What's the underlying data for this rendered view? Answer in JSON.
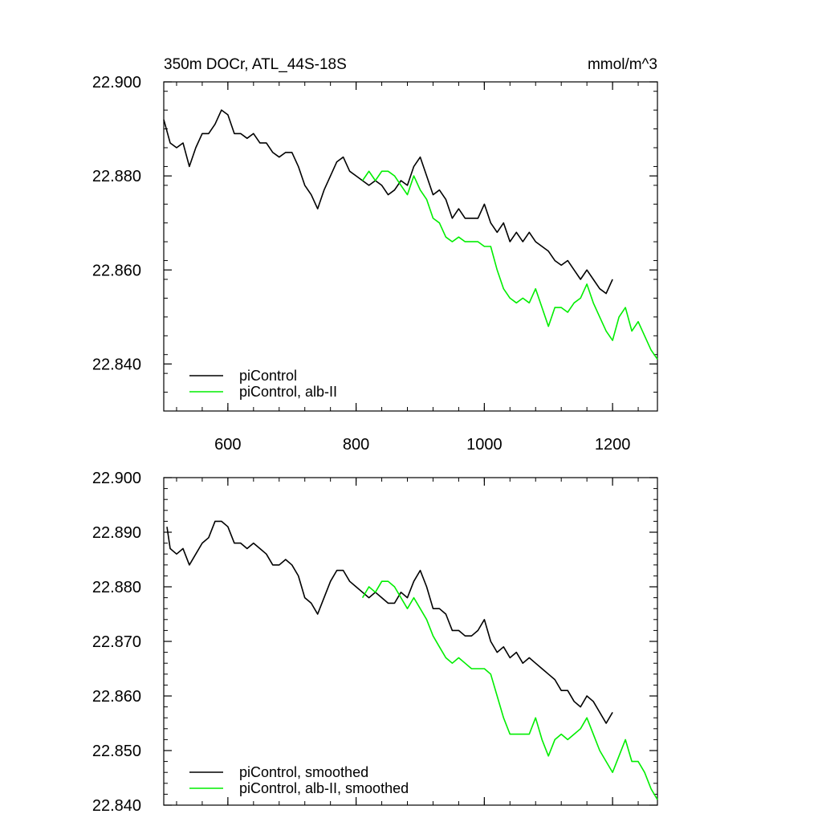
{
  "figure": {
    "title_left": "350m DOCr, ATL_44S-18S",
    "title_right": "mmol/m^3"
  },
  "chart_data": [
    {
      "type": "line",
      "panel": "top",
      "xlim": [
        500,
        1270
      ],
      "ylim": [
        22.83,
        22.9
      ],
      "xticks": [
        600,
        800,
        1000,
        1200
      ],
      "xtick_labels": [
        "600",
        "800",
        "1000",
        "1200"
      ],
      "yticks": [
        22.84,
        22.86,
        22.88,
        22.9
      ],
      "ytick_labels": [
        "22.840",
        "22.860",
        "22.880",
        "22.900"
      ],
      "legend_position": "bottom-left",
      "series": [
        {
          "name": "piControl",
          "color": "#000000",
          "x": [
            500,
            510,
            520,
            530,
            540,
            550,
            560,
            570,
            580,
            590,
            600,
            610,
            620,
            630,
            640,
            650,
            660,
            670,
            680,
            690,
            700,
            710,
            720,
            730,
            740,
            750,
            760,
            770,
            780,
            790,
            800,
            810,
            820,
            830,
            840,
            850,
            860,
            870,
            880,
            890,
            900,
            910,
            920,
            930,
            940,
            950,
            960,
            970,
            980,
            990,
            1000,
            1010,
            1020,
            1030,
            1040,
            1050,
            1060,
            1070,
            1080,
            1090,
            1100,
            1110,
            1120,
            1130,
            1140,
            1150,
            1160,
            1170,
            1180,
            1190,
            1200
          ],
          "y": [
            22.892,
            22.887,
            22.886,
            22.887,
            22.882,
            22.886,
            22.889,
            22.889,
            22.891,
            22.894,
            22.893,
            22.889,
            22.889,
            22.888,
            22.889,
            22.887,
            22.887,
            22.885,
            22.884,
            22.885,
            22.885,
            22.882,
            22.878,
            22.876,
            22.873,
            22.877,
            22.88,
            22.883,
            22.884,
            22.881,
            22.88,
            22.879,
            22.878,
            22.879,
            22.878,
            22.876,
            22.877,
            22.879,
            22.878,
            22.882,
            22.884,
            22.88,
            22.876,
            22.877,
            22.875,
            22.871,
            22.873,
            22.871,
            22.871,
            22.871,
            22.874,
            22.87,
            22.868,
            22.87,
            22.866,
            22.868,
            22.866,
            22.868,
            22.866,
            22.865,
            22.864,
            22.862,
            22.861,
            22.862,
            22.86,
            22.858,
            22.86,
            22.858,
            22.856,
            22.855,
            22.858
          ]
        },
        {
          "name": "piControl, alb-II",
          "color": "#00ee00",
          "x": [
            810,
            820,
            830,
            840,
            850,
            860,
            870,
            880,
            890,
            900,
            910,
            920,
            930,
            940,
            950,
            960,
            970,
            980,
            990,
            1000,
            1010,
            1020,
            1030,
            1040,
            1050,
            1060,
            1070,
            1080,
            1090,
            1100,
            1110,
            1120,
            1130,
            1140,
            1150,
            1160,
            1170,
            1180,
            1190,
            1200,
            1210,
            1220,
            1230,
            1240,
            1250,
            1260,
            1270
          ],
          "y": [
            22.879,
            22.881,
            22.879,
            22.881,
            22.881,
            22.88,
            22.878,
            22.876,
            22.88,
            22.877,
            22.875,
            22.871,
            22.87,
            22.867,
            22.866,
            22.867,
            22.866,
            22.866,
            22.866,
            22.865,
            22.865,
            22.86,
            22.856,
            22.854,
            22.853,
            22.854,
            22.853,
            22.856,
            22.852,
            22.848,
            22.852,
            22.852,
            22.851,
            22.853,
            22.854,
            22.857,
            22.853,
            22.85,
            22.847,
            22.845,
            22.85,
            22.852,
            22.847,
            22.849,
            22.846,
            22.843,
            22.841
          ]
        }
      ]
    },
    {
      "type": "line",
      "panel": "bottom",
      "xlim": [
        500,
        1270
      ],
      "ylim": [
        22.84,
        22.9
      ],
      "xticks": [
        600,
        800,
        1000,
        1200
      ],
      "yticks": [
        22.84,
        22.85,
        22.86,
        22.87,
        22.88,
        22.89,
        22.9
      ],
      "ytick_labels": [
        "22.840",
        "22.850",
        "22.860",
        "22.870",
        "22.880",
        "22.890",
        "22.900"
      ],
      "legend_position": "bottom-left",
      "series": [
        {
          "name": "piControl, smoothed",
          "color": "#000000",
          "x": [
            505,
            510,
            520,
            530,
            540,
            550,
            560,
            570,
            580,
            590,
            600,
            610,
            620,
            630,
            640,
            650,
            660,
            670,
            680,
            690,
            700,
            710,
            720,
            730,
            740,
            750,
            760,
            770,
            780,
            790,
            800,
            810,
            820,
            830,
            840,
            850,
            860,
            870,
            880,
            890,
            900,
            910,
            920,
            930,
            940,
            950,
            960,
            970,
            980,
            990,
            1000,
            1010,
            1020,
            1030,
            1040,
            1050,
            1060,
            1070,
            1080,
            1090,
            1100,
            1110,
            1120,
            1130,
            1140,
            1150,
            1160,
            1170,
            1180,
            1190,
            1200
          ],
          "y": [
            22.891,
            22.887,
            22.886,
            22.887,
            22.884,
            22.886,
            22.888,
            22.889,
            22.892,
            22.892,
            22.891,
            22.888,
            22.888,
            22.887,
            22.888,
            22.887,
            22.886,
            22.884,
            22.884,
            22.885,
            22.884,
            22.882,
            22.878,
            22.877,
            22.875,
            22.878,
            22.881,
            22.883,
            22.883,
            22.881,
            22.88,
            22.879,
            22.878,
            22.879,
            22.878,
            22.877,
            22.877,
            22.879,
            22.878,
            22.881,
            22.883,
            22.88,
            22.876,
            22.876,
            22.875,
            22.872,
            22.872,
            22.871,
            22.871,
            22.872,
            22.874,
            22.87,
            22.868,
            22.869,
            22.867,
            22.868,
            22.866,
            22.867,
            22.866,
            22.865,
            22.864,
            22.863,
            22.861,
            22.861,
            22.859,
            22.858,
            22.86,
            22.859,
            22.857,
            22.855,
            22.857
          ]
        },
        {
          "name": "piControl, alb-II, smoothed",
          "color": "#00ee00",
          "x": [
            810,
            820,
            830,
            840,
            850,
            860,
            870,
            880,
            890,
            900,
            910,
            920,
            930,
            940,
            950,
            960,
            970,
            980,
            990,
            1000,
            1010,
            1020,
            1030,
            1040,
            1050,
            1060,
            1070,
            1080,
            1090,
            1100,
            1110,
            1120,
            1130,
            1140,
            1150,
            1160,
            1170,
            1180,
            1190,
            1200,
            1210,
            1220,
            1230,
            1240,
            1250,
            1260,
            1270
          ],
          "y": [
            22.878,
            22.88,
            22.879,
            22.881,
            22.881,
            22.88,
            22.878,
            22.876,
            22.878,
            22.876,
            22.874,
            22.871,
            22.869,
            22.867,
            22.866,
            22.867,
            22.866,
            22.865,
            22.865,
            22.865,
            22.864,
            22.86,
            22.856,
            22.853,
            22.853,
            22.853,
            22.853,
            22.856,
            22.852,
            22.849,
            22.852,
            22.853,
            22.852,
            22.853,
            22.854,
            22.856,
            22.853,
            22.85,
            22.848,
            22.846,
            22.849,
            22.852,
            22.848,
            22.848,
            22.846,
            22.843,
            22.841
          ]
        }
      ]
    }
  ]
}
